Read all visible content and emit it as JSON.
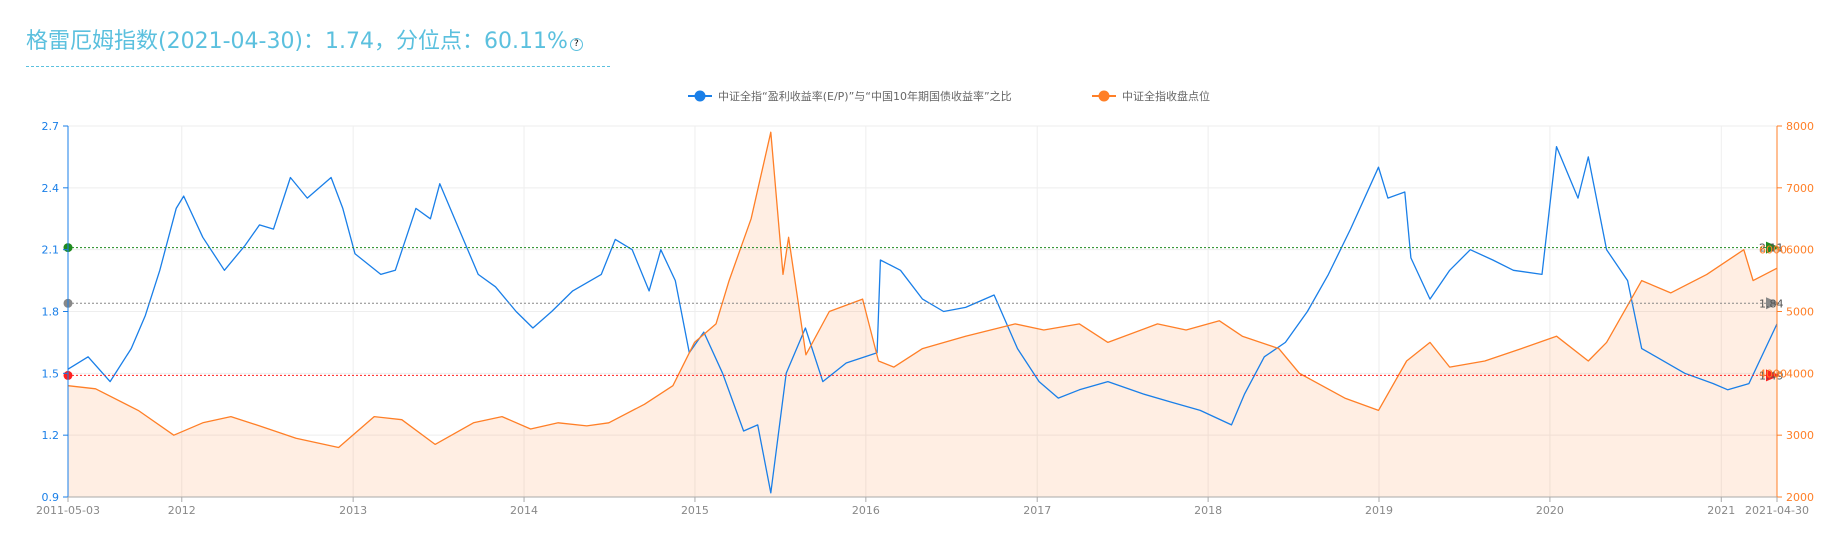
{
  "header": {
    "title": "格雷厄姆指数(2021-04-30)：1.74，分位点：60.11%",
    "help_icon": "question-circle-icon"
  },
  "chart_data": {
    "type": "line",
    "title": "格雷厄姆指数(2021-04-30)：1.74，分位点：60.11%",
    "legend_position": "top-center",
    "grid": true,
    "x_ticks": [
      "2011-05-03",
      "2012",
      "2013",
      "2014",
      "2015",
      "2016",
      "2017",
      "2018",
      "2019",
      "2020",
      "2021",
      "2021-04-30"
    ],
    "x_range": [
      "2011-05-03",
      "2021-04-30"
    ],
    "y_left": {
      "ylim": [
        0.9,
        2.7
      ],
      "ticks": [
        "0.9",
        "1.2",
        "1.5",
        "1.8",
        "2.1",
        "2.4",
        "2.7"
      ]
    },
    "y_right": {
      "ylim": [
        2000,
        8000
      ],
      "ticks": [
        "2000",
        "3000",
        "4000",
        "5000",
        "6000",
        "7000",
        "8000"
      ]
    },
    "reference_lines": [
      {
        "value": 2.11,
        "label": "2.11",
        "color": "#1f8a1f"
      },
      {
        "value": 1.84,
        "label": "1.84",
        "color": "#888888"
      },
      {
        "value": 1.49,
        "label": "1.49",
        "color": "#ff2020"
      }
    ],
    "right_markers": [
      {
        "value": 6000,
        "label": "6000"
      },
      {
        "value": 4000,
        "label": "4000"
      }
    ],
    "series": [
      {
        "name": "中证全指“盈利收益率(E/P)”与“中国10年期国债收益率”之比",
        "axis": "left",
        "color": "#1a7fe8",
        "points": [
          [
            "2011-05-03",
            1.52
          ],
          [
            "2011-06-15",
            1.58
          ],
          [
            "2011-08-01",
            1.46
          ],
          [
            "2011-09-15",
            1.62
          ],
          [
            "2011-10-15",
            1.78
          ],
          [
            "2011-11-15",
            2.0
          ],
          [
            "2011-12-20",
            2.3
          ],
          [
            "2012-01-05",
            2.36
          ],
          [
            "2012-02-15",
            2.16
          ],
          [
            "2012-04-01",
            2.0
          ],
          [
            "2012-05-15",
            2.12
          ],
          [
            "2012-06-15",
            2.22
          ],
          [
            "2012-07-15",
            2.2
          ],
          [
            "2012-08-20",
            2.45
          ],
          [
            "2012-09-25",
            2.35
          ],
          [
            "2012-11-15",
            2.45
          ],
          [
            "2012-12-10",
            2.3
          ],
          [
            "2013-01-05",
            2.08
          ],
          [
            "2013-03-01",
            1.98
          ],
          [
            "2013-04-01",
            2.0
          ],
          [
            "2013-05-15",
            2.3
          ],
          [
            "2013-06-15",
            2.25
          ],
          [
            "2013-07-05",
            2.42
          ],
          [
            "2013-08-15",
            2.2
          ],
          [
            "2013-09-25",
            1.98
          ],
          [
            "2013-11-01",
            1.92
          ],
          [
            "2013-12-15",
            1.8
          ],
          [
            "2014-01-20",
            1.72
          ],
          [
            "2014-03-01",
            1.8
          ],
          [
            "2014-04-15",
            1.9
          ],
          [
            "2014-06-15",
            1.98
          ],
          [
            "2014-07-15",
            2.15
          ],
          [
            "2014-08-20",
            2.1
          ],
          [
            "2014-09-25",
            1.9
          ],
          [
            "2014-10-20",
            2.1
          ],
          [
            "2014-11-20",
            1.95
          ],
          [
            "2014-12-20",
            1.6
          ],
          [
            "2015-01-20",
            1.7
          ],
          [
            "2015-03-01",
            1.5
          ],
          [
            "2015-04-15",
            1.22
          ],
          [
            "2015-05-15",
            1.25
          ],
          [
            "2015-06-12",
            0.92
          ],
          [
            "2015-07-15",
            1.5
          ],
          [
            "2015-08-25",
            1.72
          ],
          [
            "2015-10-01",
            1.46
          ],
          [
            "2015-11-20",
            1.55
          ],
          [
            "2016-01-25",
            1.6
          ],
          [
            "2016-02-01",
            2.05
          ],
          [
            "2016-03-15",
            2.0
          ],
          [
            "2016-05-01",
            1.86
          ],
          [
            "2016-06-15",
            1.8
          ],
          [
            "2016-08-01",
            1.82
          ],
          [
            "2016-10-01",
            1.88
          ],
          [
            "2016-11-20",
            1.62
          ],
          [
            "2017-01-05",
            1.46
          ],
          [
            "2017-02-15",
            1.38
          ],
          [
            "2017-04-01",
            1.42
          ],
          [
            "2017-06-01",
            1.46
          ],
          [
            "2017-08-15",
            1.4
          ],
          [
            "2017-10-15",
            1.36
          ],
          [
            "2017-12-15",
            1.32
          ],
          [
            "2018-02-20",
            1.25
          ],
          [
            "2018-03-20",
            1.4
          ],
          [
            "2018-05-01",
            1.58
          ],
          [
            "2018-06-15",
            1.65
          ],
          [
            "2018-08-01",
            1.8
          ],
          [
            "2018-09-15",
            1.98
          ],
          [
            "2018-11-01",
            2.2
          ],
          [
            "2018-12-31",
            2.5
          ],
          [
            "2019-01-20",
            2.35
          ],
          [
            "2019-02-25",
            2.38
          ],
          [
            "2019-03-10",
            2.06
          ],
          [
            "2019-04-20",
            1.86
          ],
          [
            "2019-06-01",
            2.0
          ],
          [
            "2019-07-15",
            2.1
          ],
          [
            "2019-09-01",
            2.05
          ],
          [
            "2019-10-15",
            2.0
          ],
          [
            "2019-12-15",
            1.98
          ],
          [
            "2020-01-15",
            2.6
          ],
          [
            "2020-03-01",
            2.35
          ],
          [
            "2020-03-23",
            2.55
          ],
          [
            "2020-05-01",
            2.1
          ],
          [
            "2020-06-15",
            1.95
          ],
          [
            "2020-07-15",
            1.62
          ],
          [
            "2020-08-15",
            1.58
          ],
          [
            "2020-10-15",
            1.5
          ],
          [
            "2020-12-15",
            1.45
          ],
          [
            "2021-01-15",
            1.42
          ],
          [
            "2021-03-01",
            1.45
          ],
          [
            "2021-04-30",
            1.74
          ]
        ]
      },
      {
        "name": "中证全指收盘点位",
        "axis": "right",
        "color": "#ff7f27",
        "points": [
          [
            "2011-05-03",
            3800
          ],
          [
            "2011-07-01",
            3750
          ],
          [
            "2011-09-30",
            3400
          ],
          [
            "2011-12-15",
            3000
          ],
          [
            "2012-02-15",
            3200
          ],
          [
            "2012-04-15",
            3300
          ],
          [
            "2012-06-15",
            3150
          ],
          [
            "2012-09-01",
            2950
          ],
          [
            "2012-12-01",
            2800
          ],
          [
            "2013-02-15",
            3300
          ],
          [
            "2013-04-15",
            3250
          ],
          [
            "2013-06-25",
            2850
          ],
          [
            "2013-09-15",
            3200
          ],
          [
            "2013-11-15",
            3300
          ],
          [
            "2014-01-15",
            3100
          ],
          [
            "2014-03-15",
            3200
          ],
          [
            "2014-05-15",
            3150
          ],
          [
            "2014-07-01",
            3200
          ],
          [
            "2014-09-15",
            3500
          ],
          [
            "2014-11-15",
            3800
          ],
          [
            "2014-12-31",
            4500
          ],
          [
            "2015-02-15",
            4800
          ],
          [
            "2015-03-15",
            5500
          ],
          [
            "2015-05-01",
            6500
          ],
          [
            "2015-06-12",
            7900
          ],
          [
            "2015-07-08",
            5600
          ],
          [
            "2015-07-20",
            6200
          ],
          [
            "2015-08-26",
            4300
          ],
          [
            "2015-10-15",
            5000
          ],
          [
            "2015-12-25",
            5200
          ],
          [
            "2016-01-28",
            4200
          ],
          [
            "2016-03-01",
            4100
          ],
          [
            "2016-05-01",
            4400
          ],
          [
            "2016-08-01",
            4600
          ],
          [
            "2016-11-15",
            4800
          ],
          [
            "2017-01-15",
            4700
          ],
          [
            "2017-04-01",
            4800
          ],
          [
            "2017-06-01",
            4500
          ],
          [
            "2017-09-15",
            4800
          ],
          [
            "2017-11-15",
            4700
          ],
          [
            "2018-01-25",
            4850
          ],
          [
            "2018-03-15",
            4600
          ],
          [
            "2018-06-01",
            4400
          ],
          [
            "2018-07-15",
            4000
          ],
          [
            "2018-10-20",
            3600
          ],
          [
            "2018-12-31",
            3400
          ],
          [
            "2019-03-01",
            4200
          ],
          [
            "2019-04-20",
            4500
          ],
          [
            "2019-06-01",
            4100
          ],
          [
            "2019-08-15",
            4200
          ],
          [
            "2019-11-01",
            4400
          ],
          [
            "2020-01-15",
            4600
          ],
          [
            "2020-03-23",
            4200
          ],
          [
            "2020-05-01",
            4500
          ],
          [
            "2020-07-15",
            5500
          ],
          [
            "2020-09-15",
            5300
          ],
          [
            "2020-12-01",
            5600
          ],
          [
            "2021-02-18",
            6000
          ],
          [
            "2021-03-10",
            5500
          ],
          [
            "2021-04-30",
            5700
          ]
        ]
      }
    ]
  }
}
